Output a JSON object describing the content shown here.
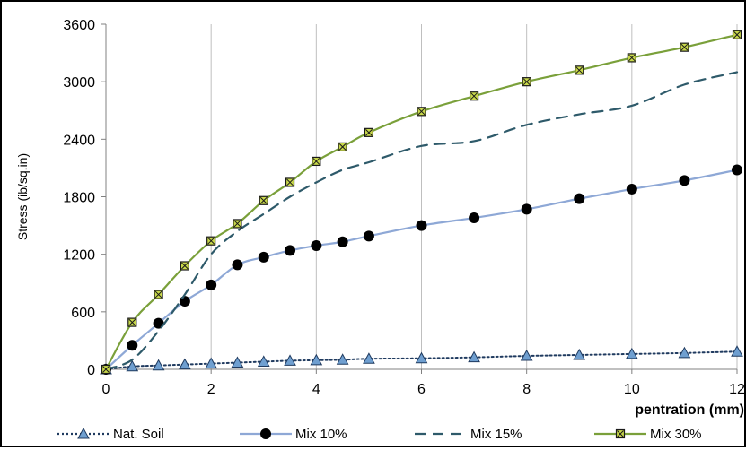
{
  "chart_data": {
    "type": "line",
    "title": "",
    "xlabel": "pentration (mm)",
    "ylabel": "Stress (ib/sq.in)",
    "xlim": [
      0,
      12
    ],
    "ylim": [
      0,
      3600
    ],
    "xticks": [
      0,
      2,
      4,
      6,
      8,
      10,
      12
    ],
    "yticks": [
      0,
      600,
      1200,
      1800,
      2400,
      3000,
      3600
    ],
    "grid": "vertical",
    "legend_position": "bottom",
    "series": [
      {
        "name": "Nat. Soil",
        "color": "#1f3a5f",
        "marker_fill": "#6f9fd0",
        "style": "dotted",
        "marker": "triangle",
        "x": [
          0,
          0.5,
          1,
          1.5,
          2,
          2.5,
          3,
          3.5,
          4,
          4.5,
          5,
          6,
          7,
          8,
          9,
          10,
          11,
          12
        ],
        "y": [
          0,
          30,
          40,
          50,
          60,
          70,
          80,
          90,
          95,
          100,
          110,
          115,
          125,
          140,
          150,
          160,
          170,
          185
        ]
      },
      {
        "name": "Mix 10%",
        "color": "#8ea8d6",
        "marker_fill": "#000000",
        "style": "solid",
        "marker": "circle",
        "x": [
          0,
          0.5,
          1,
          1.5,
          2,
          2.5,
          3,
          3.5,
          4,
          4.5,
          5,
          6,
          7,
          8,
          9,
          10,
          11,
          12
        ],
        "y": [
          0,
          250,
          480,
          710,
          880,
          1090,
          1170,
          1240,
          1290,
          1330,
          1390,
          1500,
          1580,
          1670,
          1780,
          1880,
          1970,
          2080
        ]
      },
      {
        "name": "Mix 15%",
        "color": "#2e5a6a",
        "style": "dashed",
        "marker": "none",
        "x": [
          0,
          0.5,
          1,
          1.5,
          2,
          2.5,
          3,
          3.5,
          4,
          4.5,
          5,
          6,
          7,
          8,
          9,
          10,
          11,
          12
        ],
        "y": [
          0,
          100,
          400,
          780,
          1200,
          1440,
          1620,
          1800,
          1950,
          2080,
          2160,
          2330,
          2380,
          2550,
          2660,
          2750,
          2970,
          3100
        ]
      },
      {
        "name": "Mix 30%",
        "color": "#7aa03a",
        "marker_fill": "#c8d84a",
        "style": "solid",
        "marker": "square-x",
        "x": [
          0,
          0.5,
          1,
          1.5,
          2,
          2.5,
          3,
          3.5,
          4,
          4.5,
          5,
          6,
          7,
          8,
          9,
          10,
          11,
          12
        ],
        "y": [
          0,
          490,
          780,
          1080,
          1340,
          1520,
          1760,
          1950,
          2170,
          2320,
          2470,
          2690,
          2850,
          3000,
          3120,
          3250,
          3360,
          3490
        ]
      }
    ]
  }
}
